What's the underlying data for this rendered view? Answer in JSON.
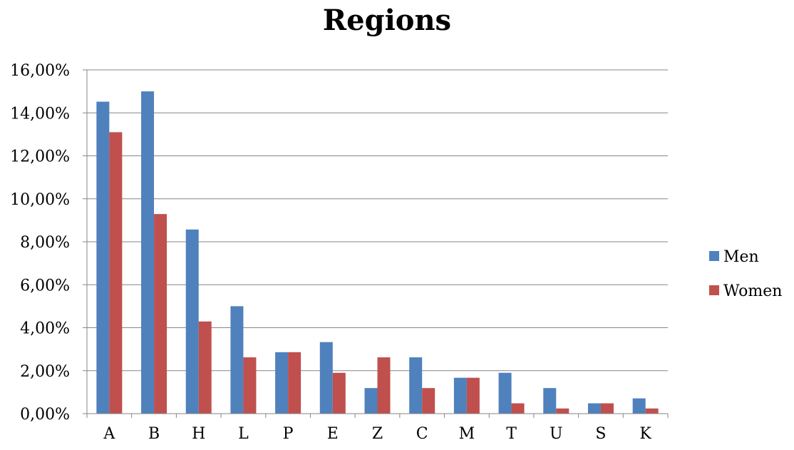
{
  "chart_data": {
    "type": "bar",
    "title": "Regions",
    "xlabel": "",
    "ylabel": "",
    "categories": [
      "A",
      "B",
      "H",
      "L",
      "P",
      "E",
      "Z",
      "C",
      "M",
      "T",
      "U",
      "S",
      "K"
    ],
    "series": [
      {
        "name": "Men",
        "color": "#4F81BD",
        "values": [
          14.52,
          15.0,
          8.57,
          5.0,
          2.86,
          3.33,
          1.19,
          2.62,
          1.67,
          1.9,
          1.19,
          0.48,
          0.71
        ]
      },
      {
        "name": "Women",
        "color": "#C0504D",
        "values": [
          13.1,
          9.29,
          4.29,
          2.62,
          2.86,
          1.9,
          2.62,
          1.19,
          1.67,
          0.48,
          0.24,
          0.48,
          0.24
        ]
      }
    ],
    "ylim": [
      0,
      16
    ],
    "yticks": [
      "0,00%",
      "2,00%",
      "4,00%",
      "6,00%",
      "8,00%",
      "10,00%",
      "12,00%",
      "14,00%",
      "16,00%"
    ],
    "grid": true,
    "legend_position": "right"
  }
}
